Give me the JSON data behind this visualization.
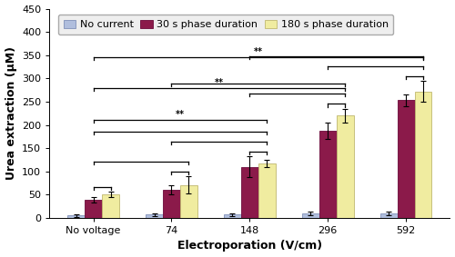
{
  "categories": [
    "No voltage",
    "74",
    "148",
    "296",
    "592"
  ],
  "xlabel": "Electroporation (V/cm)",
  "ylabel": "Urea extraction (μM)",
  "ylim": [
    0,
    450
  ],
  "yticks": [
    0,
    50,
    100,
    150,
    200,
    250,
    300,
    350,
    400,
    450
  ],
  "bar_width": 0.22,
  "legend_labels": [
    "No current",
    "30 s phase duration",
    "180 s phase duration"
  ],
  "bar_colors": [
    "#b0bedd",
    "#8b1a4a",
    "#f0eca0"
  ],
  "bar_edge_colors": [
    "#8090b8",
    "#6b0a3a",
    "#c0b870"
  ],
  "values": {
    "no_current": [
      5,
      7,
      7,
      9,
      10
    ],
    "phase_30": [
      38,
      60,
      110,
      187,
      253
    ],
    "phase_180": [
      51,
      71,
      117,
      220,
      272
    ]
  },
  "errors": {
    "no_current": [
      3,
      3,
      3,
      4,
      4
    ],
    "phase_30": [
      6,
      10,
      22,
      18,
      12
    ],
    "phase_180": [
      6,
      18,
      8,
      15,
      22
    ]
  },
  "axis_fontsize": 9,
  "tick_fontsize": 8,
  "legend_fontsize": 8,
  "legend_box_color": "#eeeeee"
}
